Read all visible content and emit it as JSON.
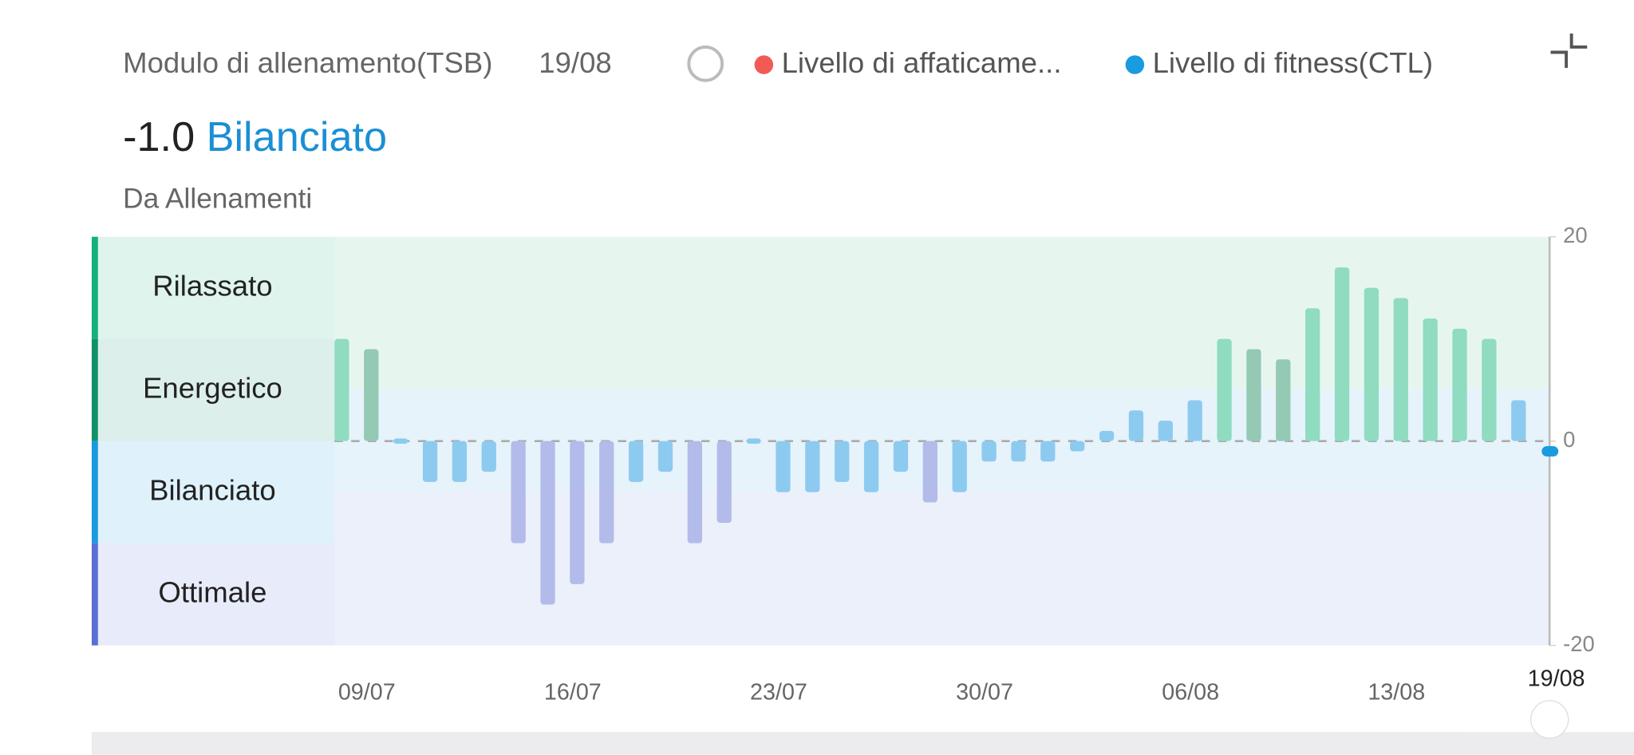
{
  "header": {
    "title": "Modulo di allenamento(TSB)",
    "date": "19/08",
    "legend": [
      {
        "name": "Livello di affaticame...",
        "color": "#f25a55"
      },
      {
        "name": "Livello di fitness(CTL)",
        "color": "#1a9be0"
      }
    ]
  },
  "summary": {
    "value": "-1.0",
    "status": "Bilanciato",
    "source": "Da Allenamenti"
  },
  "chart_data": {
    "type": "bar",
    "categories": [
      "09/07",
      null,
      null,
      null,
      null,
      null,
      null,
      "16/07",
      null,
      null,
      null,
      null,
      null,
      null,
      "23/07",
      null,
      null,
      null,
      null,
      null,
      null,
      "30/07",
      null,
      null,
      null,
      null,
      null,
      null,
      "06/08",
      null,
      null,
      null,
      null,
      null,
      null,
      "13/08",
      null,
      null,
      null,
      null,
      null,
      "19/08"
    ],
    "values": [
      10,
      9,
      0,
      -4,
      -4,
      -3,
      -10,
      -16,
      -14,
      -10,
      -4,
      -3,
      -10,
      -8,
      0,
      -5,
      -5,
      -4,
      -5,
      -3,
      -6,
      -5,
      -2,
      -2,
      -2,
      -1,
      1,
      3,
      2,
      4,
      10,
      9,
      8,
      13,
      17,
      15,
      14,
      12,
      11,
      10,
      4,
      -1
    ],
    "bar_colors": [
      "#8fdcc0",
      "#94c9b4",
      "#8dcaf0",
      "#8dcaf0",
      "#8dcaf0",
      "#8dcaf0",
      "#b3bbea",
      "#b3bbea",
      "#b3bbea",
      "#b3bbea",
      "#8dcaf0",
      "#8dcaf0",
      "#b3bbea",
      "#b3bbea",
      "#8dcaf0",
      "#8dcaf0",
      "#8dcaf0",
      "#8dcaf0",
      "#8dcaf0",
      "#8dcaf0",
      "#b3bbea",
      "#8dcaf0",
      "#8dcaf0",
      "#8dcaf0",
      "#8dcaf0",
      "#8dcaf0",
      "#8dcaf0",
      "#8dcaf0",
      "#8dcaf0",
      "#8dcaf0",
      "#8fdcc0",
      "#94c9b4",
      "#94c9b4",
      "#8fdcc0",
      "#8fdcc0",
      "#8fdcc0",
      "#8fdcc0",
      "#8fdcc0",
      "#8fdcc0",
      "#8fdcc0",
      "#8dcaf0",
      "#1a9be0"
    ],
    "zones": [
      "Rilassato",
      "Energetico",
      "Bilanciato",
      "Ottimale"
    ],
    "zone_colors": [
      "#14b07c",
      "#10916a",
      "#1a9be0",
      "#5c6fd4"
    ],
    "ylim": [
      -20,
      20
    ],
    "yticks": [
      -20,
      0,
      20
    ]
  }
}
